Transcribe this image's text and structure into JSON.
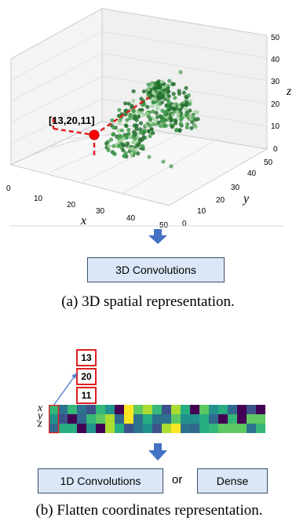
{
  "top_plot": {
    "point_label": "[13,20,11]",
    "x_axis": {
      "label": "x",
      "ticks": [
        "0",
        "10",
        "20",
        "30",
        "40",
        "50"
      ]
    },
    "y_axis": {
      "label": "y",
      "ticks": [
        "0",
        "10",
        "20",
        "30",
        "40",
        "50"
      ]
    },
    "z_axis": {
      "label": "z",
      "ticks": [
        "0",
        "10",
        "20",
        "30",
        "40",
        "50"
      ]
    },
    "highlight_color": "#ff0000",
    "point_color": "#2e8b3a"
  },
  "top_box": {
    "label": "3D Convolutions"
  },
  "caption_a": "(a) 3D spatial representation.",
  "coordinate_stack": {
    "values": [
      "13",
      "20",
      "11"
    ]
  },
  "flatten": {
    "row_labels": [
      "x",
      "y",
      "z"
    ],
    "colormap_note": "viridis"
  },
  "bottom_boxes": {
    "left_label": "1D Convolutions",
    "connector": "or",
    "right_label": "Dense"
  },
  "caption_b": "(b) Flatten coordinates representation.",
  "colors": {
    "arrow": "#4472c4",
    "box_fill": "#dbe7f6",
    "highlight": "#e02020"
  }
}
